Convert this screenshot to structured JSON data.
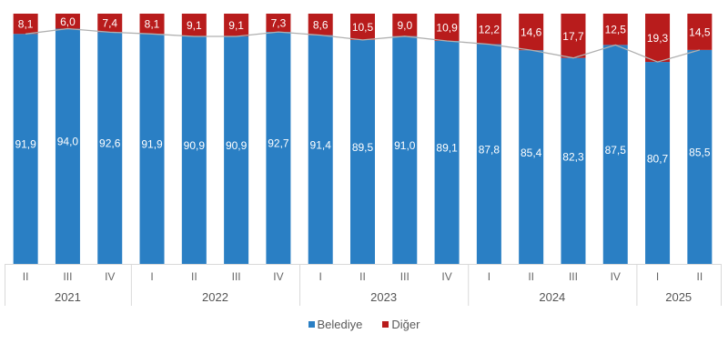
{
  "chart_data": {
    "type": "bar",
    "stacked": true,
    "title": "",
    "xlabel": "",
    "ylabel": "",
    "ylim": [
      0,
      100
    ],
    "categories": [
      "II",
      "III",
      "IV",
      "I",
      "II",
      "III",
      "IV",
      "I",
      "II",
      "III",
      "IV",
      "I",
      "II",
      "III",
      "IV",
      "I",
      "II"
    ],
    "years": [
      {
        "label": "2021",
        "count": 3
      },
      {
        "label": "2022",
        "count": 4
      },
      {
        "label": "2023",
        "count": 4
      },
      {
        "label": "2024",
        "count": 4
      },
      {
        "label": "2025",
        "count": 2
      }
    ],
    "series": [
      {
        "name": "Belediye",
        "color": "#2a7fc4",
        "values": [
          91.9,
          94.0,
          92.6,
          91.9,
          90.9,
          90.9,
          92.7,
          91.4,
          89.5,
          91.0,
          89.1,
          87.8,
          85.4,
          82.3,
          87.5,
          80.7,
          85.5
        ],
        "labels": [
          "91,9",
          "94,0",
          "92,6",
          "91,9",
          "90,9",
          "90,9",
          "92,7",
          "91,4",
          "89,5",
          "91,0",
          "89,1",
          "87,8",
          "85,4",
          "82,3",
          "87,5",
          "80,7",
          "85,5"
        ]
      },
      {
        "name": "Diğer",
        "color": "#b81c1c",
        "values": [
          8.1,
          6.0,
          7.4,
          8.1,
          9.1,
          9.1,
          7.3,
          8.6,
          10.5,
          9.0,
          10.9,
          12.2,
          14.6,
          17.7,
          12.5,
          19.3,
          14.5
        ],
        "labels": [
          "8,1",
          "6,0",
          "7,4",
          "8,1",
          "9,1",
          "9,1",
          "7,3",
          "8,6",
          "10,5",
          "9,0",
          "10,9",
          "12,2",
          "14,6",
          "17,7",
          "12,5",
          "19,3",
          "14,5"
        ]
      }
    ],
    "legend": {
      "position": "bottom",
      "entries": [
        "Belediye",
        "Diğer"
      ]
    },
    "grid": false
  }
}
